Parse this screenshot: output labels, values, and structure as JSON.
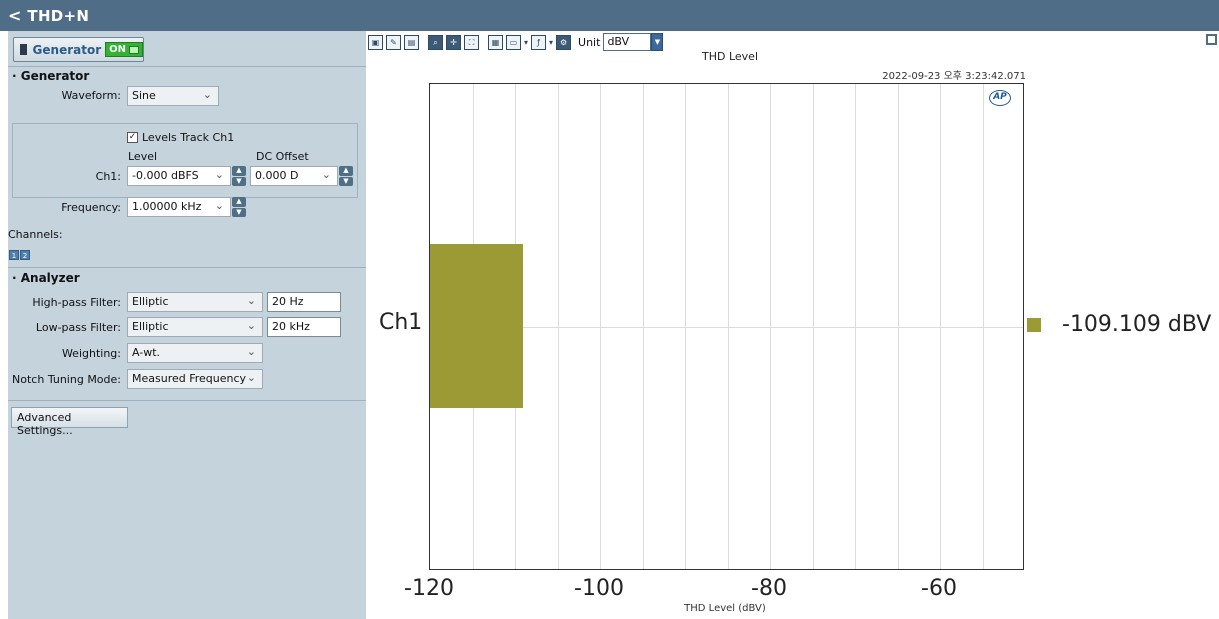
{
  "window": {
    "title": "THD+N",
    "back_glyph": "<"
  },
  "generator_toggle": {
    "label": "Generator",
    "state": "ON"
  },
  "generator": {
    "section_title": "Generator",
    "waveform_label": "Waveform:",
    "waveform_value": "Sine",
    "levels_track_label": "Levels Track Ch1",
    "levels_track_checked": true,
    "level_header": "Level",
    "dc_offset_header": "DC Offset",
    "ch1_label": "Ch1:",
    "ch1_level": "-0.000 dBFS",
    "ch1_dc_offset": "0.000 D",
    "frequency_label": "Frequency:",
    "frequency_value": "1.00000 kHz",
    "channels_label": "Channels:",
    "channel_buttons": [
      "1",
      "2"
    ]
  },
  "analyzer": {
    "section_title": "Analyzer",
    "highpass_label": "High-pass Filter:",
    "highpass_value": "Elliptic",
    "highpass_freq": "20 Hz",
    "lowpass_label": "Low-pass Filter:",
    "lowpass_value": "Elliptic",
    "lowpass_freq": "20 kHz",
    "weighting_label": "Weighting:",
    "weighting_value": "A-wt.",
    "notch_label": "Notch Tuning Mode:",
    "notch_value": "Measured Frequency"
  },
  "advanced_button": "Advanced Settings...",
  "toolbar": {
    "unit_label": "Unit",
    "unit_value": "dBV"
  },
  "chart_data": {
    "type": "bar",
    "orientation": "horizontal",
    "title": "THD Level",
    "timestamp": "2022-09-23 오후 3:23:42.071",
    "xlabel": "THD Level (dBV)",
    "xlim": [
      -120,
      -50
    ],
    "xticks": [
      "-120",
      "-100",
      "-80",
      "-60"
    ],
    "categories": [
      "Ch1"
    ],
    "values": [
      -109.109
    ],
    "value_label": "-109.109 dBV",
    "bar_color": "#9c9a34",
    "logo": "AP"
  }
}
